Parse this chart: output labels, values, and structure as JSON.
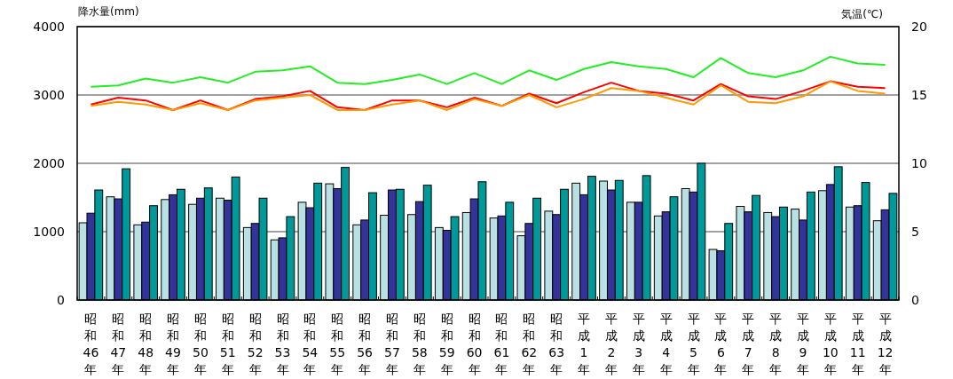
{
  "chart_data": {
    "type": "bar",
    "ylabel": "降水量(mm)",
    "y2label": "気温(℃)",
    "categories": [
      "昭和46年",
      "昭和47年",
      "昭和48年",
      "昭和49年",
      "昭和50年",
      "昭和51年",
      "昭和52年",
      "昭和53年",
      "昭和54年",
      "昭和55年",
      "昭和56年",
      "昭和57年",
      "昭和58年",
      "昭和59年",
      "昭和60年",
      "昭和61年",
      "昭和62年",
      "昭和63年",
      "平成1年",
      "平成2年",
      "平成3年",
      "平成4年",
      "平成5年",
      "平成6年",
      "平成7年",
      "平成8年",
      "平成9年",
      "平成10年",
      "平成11年",
      "平成12年"
    ],
    "series": [
      {
        "color": "#b9e0e3",
        "values": [
          1130,
          1510,
          1100,
          1470,
          1400,
          1490,
          1060,
          880,
          1430,
          1700,
          1100,
          1240,
          1250,
          1060,
          1280,
          1200,
          940,
          1300,
          1710,
          1740,
          1430,
          1230,
          1630,
          740,
          1370,
          1280,
          1330,
          1600,
          1360,
          1160
        ]
      },
      {
        "color": "#333399",
        "values": [
          1270,
          1480,
          1140,
          1540,
          1490,
          1460,
          1120,
          910,
          1350,
          1630,
          1170,
          1610,
          1440,
          1020,
          1480,
          1230,
          1120,
          1250,
          1540,
          1610,
          1430,
          1290,
          1580,
          720,
          1290,
          1220,
          1170,
          1690,
          1380,
          1320
        ]
      },
      {
        "color": "#009999",
        "values": [
          1610,
          1920,
          1380,
          1620,
          1640,
          1800,
          1490,
          1220,
          1710,
          1940,
          1570,
          1620,
          1680,
          1220,
          1730,
          1430,
          1490,
          1620,
          1810,
          1750,
          1820,
          1510,
          2000,
          1120,
          1530,
          1360,
          1580,
          1950,
          1720,
          1560
        ]
      },
      {
        "type": "line",
        "axis": "y2",
        "color": "#22ee22",
        "values": [
          15.6,
          15.7,
          16.2,
          15.9,
          16.3,
          15.9,
          16.7,
          16.8,
          17.1,
          15.9,
          15.8,
          16.1,
          16.5,
          15.8,
          16.6,
          15.8,
          16.8,
          16.1,
          16.9,
          17.4,
          17.1,
          16.9,
          16.3,
          17.7,
          16.6,
          16.3,
          16.8,
          17.8,
          17.3,
          17.2
        ]
      },
      {
        "type": "line",
        "axis": "y2",
        "color": "#ff0000",
        "values": [
          14.3,
          14.8,
          14.6,
          13.9,
          14.6,
          13.9,
          14.7,
          14.9,
          15.3,
          14.1,
          13.9,
          14.6,
          14.6,
          14.1,
          14.8,
          14.2,
          15.1,
          14.4,
          15.2,
          15.9,
          15.3,
          15.1,
          14.6,
          15.8,
          14.9,
          14.7,
          15.3,
          16.0,
          15.6,
          15.5
        ]
      },
      {
        "type": "line",
        "axis": "y2",
        "color": "#ff9900",
        "values": [
          14.2,
          14.5,
          14.3,
          13.9,
          14.4,
          13.9,
          14.6,
          14.8,
          15.0,
          13.9,
          13.9,
          14.3,
          14.6,
          13.9,
          14.7,
          14.2,
          15.0,
          14.1,
          14.7,
          15.5,
          15.3,
          14.8,
          14.3,
          15.7,
          14.5,
          14.4,
          14.9,
          16.0,
          15.3,
          15.1
        ]
      }
    ],
    "ylim": [
      0,
      4000
    ],
    "yticks": [
      0,
      1000,
      2000,
      3000,
      4000
    ],
    "y2lim": [
      0,
      20
    ],
    "y2ticks": [
      0,
      5,
      10,
      15,
      20
    ],
    "grid": "y"
  }
}
